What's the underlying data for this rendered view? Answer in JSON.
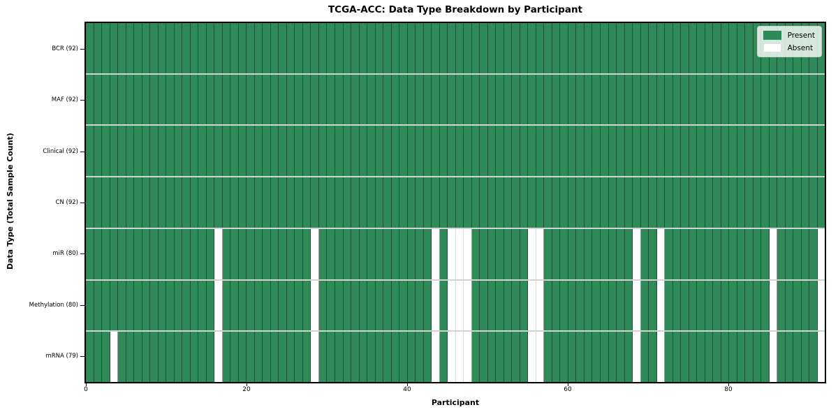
{
  "chart_data": {
    "type": "heatmap",
    "title": "TCGA-ACC: Data Type Breakdown by Participant",
    "xlabel": "Participant",
    "ylabel": "Data Type (Total Sample Count)",
    "n_participants": 92,
    "x_ticks": [
      0,
      20,
      40,
      60,
      80
    ],
    "x_range": [
      0,
      92
    ],
    "grid": "on",
    "legend_position": "upper right",
    "legend": [
      {
        "label": "Present",
        "color": "#2e8b57"
      },
      {
        "label": "Absent",
        "color": "#ffffff"
      }
    ],
    "rows": [
      {
        "name": "BCR",
        "label": "BCR (92)",
        "total_samples": 92,
        "absent_participants": []
      },
      {
        "name": "MAF",
        "label": "MAF (92)",
        "total_samples": 92,
        "absent_participants": []
      },
      {
        "name": "Clinical",
        "label": "Clinical (92)",
        "total_samples": 92,
        "absent_participants": []
      },
      {
        "name": "CN",
        "label": "CN (92)",
        "total_samples": 92,
        "absent_participants": []
      },
      {
        "name": "miR",
        "label": "miR (80)",
        "total_samples": 80,
        "absent_participants": [
          16,
          28,
          43,
          45,
          46,
          47,
          55,
          56,
          68,
          71,
          85,
          91
        ]
      },
      {
        "name": "Methylation",
        "label": "Methylation (80)",
        "total_samples": 80,
        "absent_participants": [
          16,
          28,
          43,
          45,
          46,
          47,
          55,
          56,
          68,
          71,
          85,
          91
        ]
      },
      {
        "name": "mRNA",
        "label": "mRNA (79)",
        "total_samples": 79,
        "absent_participants": [
          3,
          16,
          28,
          43,
          45,
          46,
          47,
          55,
          56,
          68,
          71,
          85,
          91
        ]
      }
    ],
    "colors": {
      "present": "#2e8b57",
      "absent": "#ffffff"
    }
  }
}
